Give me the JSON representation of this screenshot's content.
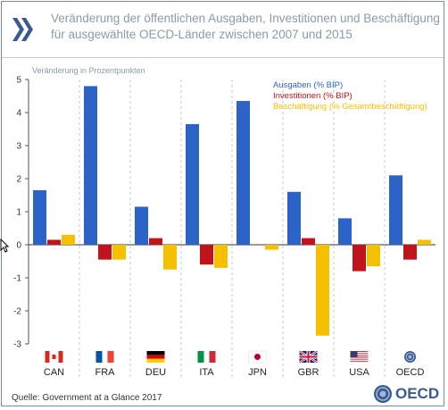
{
  "header": {
    "title_line1": "Veränderung der öffentlichen Ausgaben, Investitionen und Beschäftigung",
    "title_line2": "für ausgewählte OECD-Länder zwischen 2007 und 2015"
  },
  "footer": {
    "source": "Quelle: Government at a Glance 2017",
    "logo_text": "OECD"
  },
  "colors": {
    "ausgaben": "#2c63c6",
    "investitionen": "#c0141c",
    "beschaeftigung": "#f5c000",
    "title": "#8a9aaa",
    "brand": "#3a5a90"
  },
  "chart_data": {
    "type": "bar",
    "ylabel": "Veränderung in Prozentpunkten",
    "ylim": [
      -3,
      5
    ],
    "yticks": [
      "-3",
      "-2",
      "-1",
      "0",
      "1",
      "2",
      "3",
      "4",
      "5"
    ],
    "categories": [
      "CAN",
      "FRA",
      "DEU",
      "ITA",
      "JPN",
      "GBR",
      "USA",
      "OECD"
    ],
    "flag_icons": [
      "canada-flag-icon",
      "france-flag-icon",
      "germany-flag-icon",
      "italy-flag-icon",
      "japan-flag-icon",
      "uk-flag-icon",
      "usa-flag-icon",
      "oecd-globe-icon"
    ],
    "legend_position": "top-right",
    "grid": "vertical dashed separators",
    "series": [
      {
        "name": "Ausgaben (% BIP)",
        "values": [
          1.65,
          4.8,
          1.15,
          3.65,
          4.35,
          1.6,
          0.8,
          2.1
        ]
      },
      {
        "name": "Investitionen (% BIP)",
        "values": [
          0.15,
          -0.45,
          0.2,
          -0.6,
          0.0,
          0.2,
          -0.8,
          -0.45
        ]
      },
      {
        "name": "Beschäftigung (% Gesamtbeschäftigung)",
        "values": [
          0.3,
          -0.45,
          -0.75,
          -0.7,
          -0.15,
          -2.75,
          -0.65,
          0.15
        ]
      }
    ]
  }
}
